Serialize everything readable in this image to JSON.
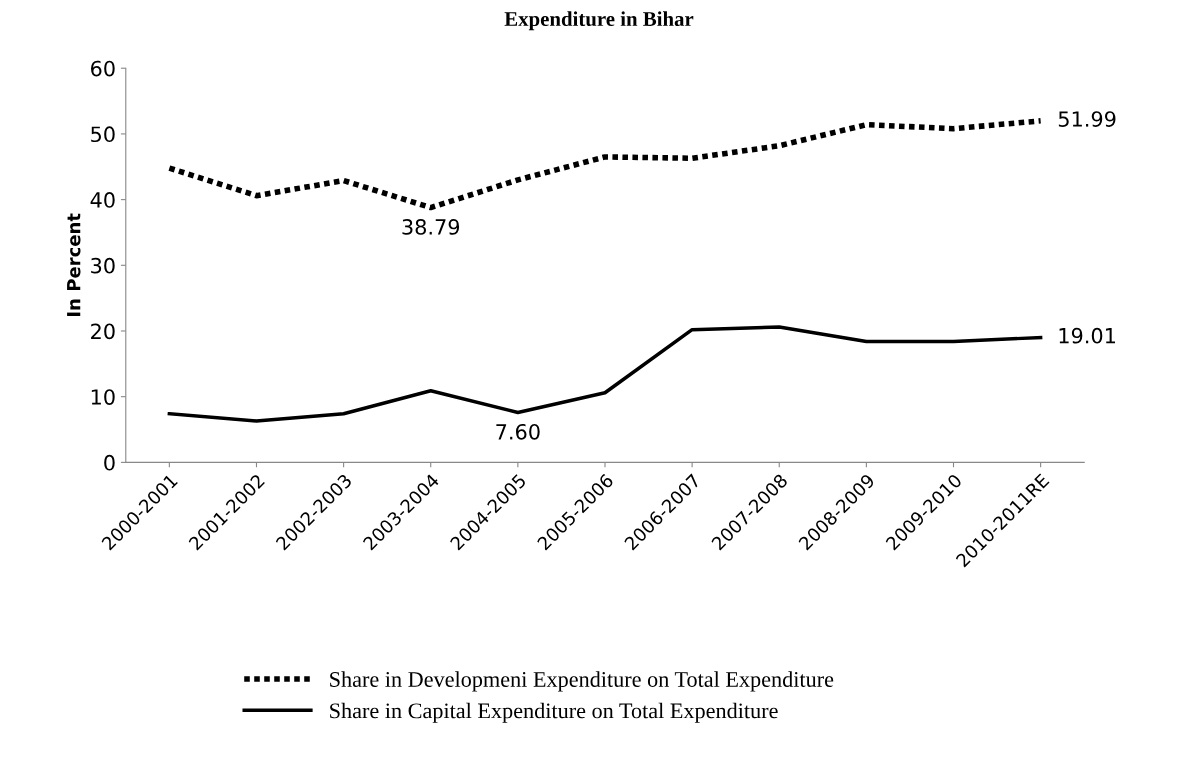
{
  "chart_data": {
    "type": "line",
    "title": "Expenditure in Bihar",
    "ylabel": "In Percent",
    "categories": [
      "2000-2001",
      "2001-2002",
      "2002-2003",
      "2003-2004",
      "2004-2005",
      "2005-2006",
      "2006-2007",
      "2007-2008",
      "2008-2009",
      "2009-2010",
      "2010-2011RE"
    ],
    "series": [
      {
        "name": "Share in Developmeni Expenditure on Total Expenditure",
        "color": "#000000",
        "line_style": "dotted",
        "values": [
          44.8,
          40.6,
          42.9,
          38.79,
          43.0,
          46.5,
          46.3,
          48.2,
          51.4,
          50.8,
          51.99
        ],
        "value_labels": [
          null,
          null,
          null,
          "38.79",
          null,
          null,
          null,
          null,
          null,
          null,
          "51.99"
        ]
      },
      {
        "name": "Share in Capital Expenditure on Total Expenditure",
        "color": "#000000",
        "line_style": "solid",
        "values": [
          7.4,
          6.3,
          7.4,
          10.9,
          7.6,
          10.6,
          20.2,
          20.6,
          18.4,
          18.4,
          19.01
        ],
        "value_labels": [
          null,
          null,
          null,
          null,
          "7.60",
          null,
          null,
          null,
          null,
          null,
          "19.01"
        ]
      }
    ],
    "ylim": [
      0,
      60
    ],
    "yticks": [
      0,
      10,
      20,
      30,
      40,
      50,
      60
    ],
    "grid": false,
    "legend": "bottom"
  }
}
